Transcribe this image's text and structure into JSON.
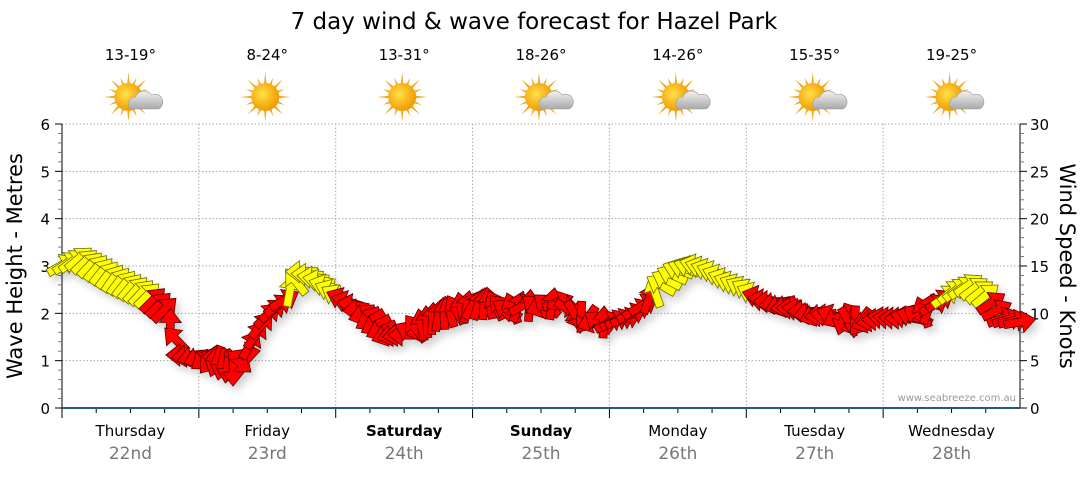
{
  "chart_data": {
    "type": "line",
    "title": "7 day wind & wave forecast for Hazel Park",
    "ylabel": "Wave Height - Metres",
    "ylabel_right": "Wind Speed - Knots",
    "ylim": [
      0,
      6
    ],
    "ylim_right": [
      0,
      30
    ],
    "yticks": [
      "0",
      "1",
      "2",
      "3",
      "4",
      "5",
      "6"
    ],
    "yticks_right": [
      "0",
      "5",
      "10",
      "15",
      "20",
      "25",
      "30"
    ],
    "grid": true,
    "watermark": "www.seabreeze.com.au",
    "days": [
      {
        "day": "Thursday",
        "date": "22nd",
        "temp": "13-19°",
        "icon": "sun-cloud",
        "weekend": false
      },
      {
        "day": "Friday",
        "date": "23rd",
        "temp": "8-24°",
        "icon": "sun",
        "weekend": false
      },
      {
        "day": "Saturday",
        "date": "24th",
        "temp": "13-31°",
        "icon": "sun",
        "weekend": true
      },
      {
        "day": "Sunday",
        "date": "25th",
        "temp": "18-26°",
        "icon": "sun-cloud",
        "weekend": true
      },
      {
        "day": "Monday",
        "date": "26th",
        "temp": "14-26°",
        "icon": "sun-cloud",
        "weekend": false
      },
      {
        "day": "Tuesday",
        "date": "27th",
        "temp": "15-35°",
        "icon": "sun-cloud",
        "weekend": false
      },
      {
        "day": "Wednesday",
        "date": "28th",
        "temp": "19-25°",
        "icon": "sun-cloud",
        "weekend": false
      }
    ],
    "interval_hours": 3,
    "wind_knots": [
      15.1,
      15.8,
      14.8,
      13.7,
      12.8,
      11.9,
      10.4,
      5.6,
      5.3,
      4.9,
      4.0,
      6.7,
      9.8,
      11.4,
      14.4,
      13.5,
      11.9,
      10.9,
      9.3,
      7.7,
      7.7,
      8.8,
      9.8,
      10.4,
      10.9,
      11.1,
      10.4,
      10.9,
      10.7,
      11.2,
      9.8,
      9.1,
      9.1,
      9.5,
      10.9,
      13.0,
      14.6,
      15.1,
      14.4,
      13.3,
      12.5,
      11.4,
      10.9,
      10.4,
      9.8,
      9.8,
      9.1,
      9.1,
      9.5,
      9.5,
      9.8,
      10.9,
      12.3,
      13.0,
      11.9,
      9.5,
      9.1
    ],
    "wind_arrow_angle_deg": [
      30,
      40,
      50,
      55,
      50,
      45,
      45,
      180,
      200,
      250,
      270,
      60,
      45,
      30,
      180,
      170,
      150,
      170,
      210,
      200,
      180,
      100,
      80,
      120,
      60,
      100,
      150,
      30,
      200,
      20,
      300,
      200,
      30,
      20,
      30,
      150,
      160,
      165,
      160,
      160,
      150,
      170,
      200,
      170,
      200,
      160,
      300,
      200,
      170,
      180,
      150,
      30,
      40,
      35,
      40,
      20,
      10
    ],
    "colors": {
      "strong": "#ffff00",
      "moderate": "#ff0000",
      "axis": "#1f5b7a",
      "grid": "#aaaaaa",
      "date": "#777777"
    },
    "strong_threshold_knots": 11.8
  }
}
